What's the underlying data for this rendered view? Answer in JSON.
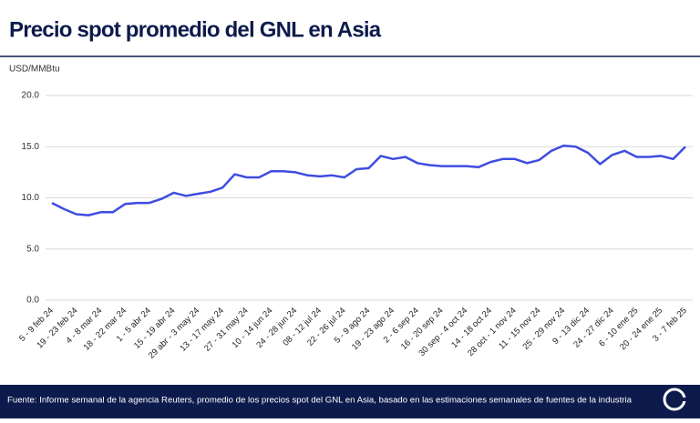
{
  "chart_data": {
    "type": "line",
    "title": "Precio spot promedio del GNL en Asia",
    "y_axis_label": "USD/MMBtu",
    "source": "Fuente: Informe semanal de la agencia Reuters, promedio de los precios spot del GNL en Asia, basado en las estimaciones semanales de fuentes de la industria",
    "categories": [
      "5 - 9 feb 24",
      null,
      "19 - 23 feb 24",
      null,
      "4 - 8 mar 24",
      null,
      "18 - 22 mar 24",
      null,
      "1 - 5 abr 24",
      null,
      "15 - 19 abr 24",
      null,
      "29 abr - 3 may 24",
      null,
      "13 - 17 may 24",
      null,
      "27 - 31 may 24",
      null,
      "10 - 14 jun 24",
      null,
      "24 - 28 jun 24",
      null,
      "08 - 12 jul 24",
      null,
      "22 - 26 jul 24",
      null,
      "5 - 9 ago 24",
      null,
      "19 - 23 ago 24",
      null,
      "2 - 6 sep 24",
      null,
      "16 - 20 sep 24",
      null,
      "30 sep - 4 oct 24",
      null,
      "14 - 18 oct 24",
      null,
      "28 oct - 1 nov 24",
      null,
      "11 - 15 nov 24",
      null,
      "25 - 29 nov 24",
      null,
      "9 - 13 dic 24",
      null,
      "24 - 27 dic 24",
      null,
      "6 - 10 ene 25",
      null,
      "20 - 24 ene 25",
      null,
      "3 - 7 feb 25"
    ],
    "series": [
      {
        "name": "Precio spot",
        "color": "#3d4de0",
        "values": [
          9.5,
          8.9,
          8.4,
          8.3,
          8.6,
          8.6,
          9.4,
          9.5,
          9.5,
          9.9,
          10.5,
          10.2,
          10.4,
          10.6,
          11.0,
          12.3,
          12.0,
          12.0,
          12.6,
          12.6,
          12.5,
          12.2,
          12.1,
          12.2,
          12.0,
          12.8,
          12.9,
          14.1,
          13.8,
          14.0,
          13.4,
          13.2,
          13.1,
          13.1,
          13.1,
          13.0,
          13.5,
          13.8,
          13.8,
          13.4,
          13.7,
          14.6,
          15.1,
          15.0,
          14.4,
          13.3,
          14.2,
          14.6,
          14.0,
          14.0,
          14.1,
          13.8,
          15.0
        ]
      }
    ],
    "ylim": [
      0,
      20
    ],
    "yticks": [
      {
        "value": 0,
        "label": "0.0"
      },
      {
        "value": 5,
        "label": "5.0"
      },
      {
        "value": 10,
        "label": "10.0"
      },
      {
        "value": 15,
        "label": "15.0"
      },
      {
        "value": 20,
        "label": "20.0"
      }
    ],
    "grid": true
  }
}
